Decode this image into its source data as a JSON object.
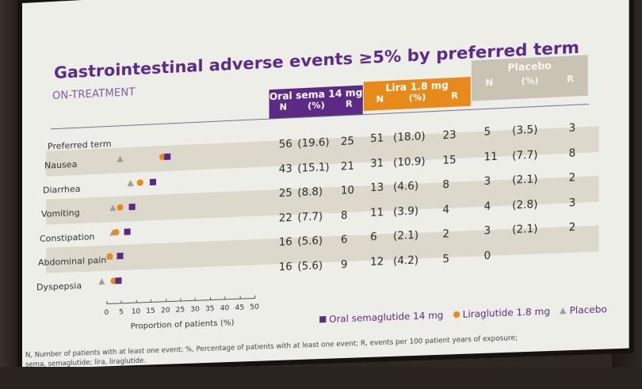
{
  "title": "Gastrointestinal adverse events ≥5% by preferred term",
  "subtitle": "ON-TREATMENT",
  "headers": {
    "oral_group": "Oral sema 14 mg",
    "lira_group": "Lira 1.8 mg",
    "plac_group": "Placebo",
    "n": "N",
    "pct": "(%)",
    "r": "R",
    "preferred_term": "Preferred term"
  },
  "rows": [
    {
      "term": "Nausea",
      "oral_n": "56",
      "oral_pct": "(19.6)",
      "oral_r": "25",
      "lira_n": "51",
      "lira_pct": "(18.0)",
      "lira_r": "23",
      "plac_n": "5",
      "plac_pct": "(3.5)",
      "plac_r": "3"
    },
    {
      "term": "Diarrhea",
      "oral_n": "43",
      "oral_pct": "(15.1)",
      "oral_r": "21",
      "lira_n": "31",
      "lira_pct": "(10.9)",
      "lira_r": "15",
      "plac_n": "11",
      "plac_pct": "(7.7)",
      "plac_r": "8"
    },
    {
      "term": "Vomiting",
      "oral_n": "25",
      "oral_pct": "(8.8)",
      "oral_r": "10",
      "lira_n": "13",
      "lira_pct": "(4.6)",
      "lira_r": "8",
      "plac_n": "3",
      "plac_pct": "(2.1)",
      "plac_r": "2"
    },
    {
      "term": "Constipation",
      "oral_n": "22",
      "oral_pct": "(7.7)",
      "oral_r": "8",
      "lira_n": "11",
      "lira_pct": "(3.9)",
      "lira_r": "4",
      "plac_n": "4",
      "plac_pct": "(2.8)",
      "plac_r": "3"
    },
    {
      "term": "Abdominal pain",
      "oral_n": "16",
      "oral_pct": "(5.6)",
      "oral_r": "6",
      "lira_n": "6",
      "lira_pct": "(2.1)",
      "lira_r": "2",
      "plac_n": "3",
      "plac_pct": "(2.1)",
      "plac_r": "2"
    },
    {
      "term": "Dyspepsia",
      "oral_n": "16",
      "oral_pct": "(5.6)",
      "oral_r": "9",
      "lira_n": "12",
      "lira_pct": "(4.2)",
      "lira_r": "5",
      "plac_n": "0",
      "plac_pct": "",
      "plac_r": ""
    }
  ],
  "axis": {
    "label": "Proportion of patients (%)",
    "ticks": [
      "0",
      "5",
      "10",
      "15",
      "20",
      "25",
      "30",
      "35",
      "40",
      "45",
      "50"
    ]
  },
  "legend": {
    "oral": "Oral semaglutide 14 mg",
    "lira": "Liraglutide 1.8 mg",
    "plac": "Placebo"
  },
  "footnote": {
    "line1": "N, Number of patients with at least one event; %, Percentage of patients with at least one event; R, events per 100 patient years of exposure;",
    "line2": "sema, semaglutide; lira, liraglutide."
  },
  "colors": {
    "oral": "#5b2a85",
    "lira": "#e8891c",
    "plac": "#a39d92"
  }
}
